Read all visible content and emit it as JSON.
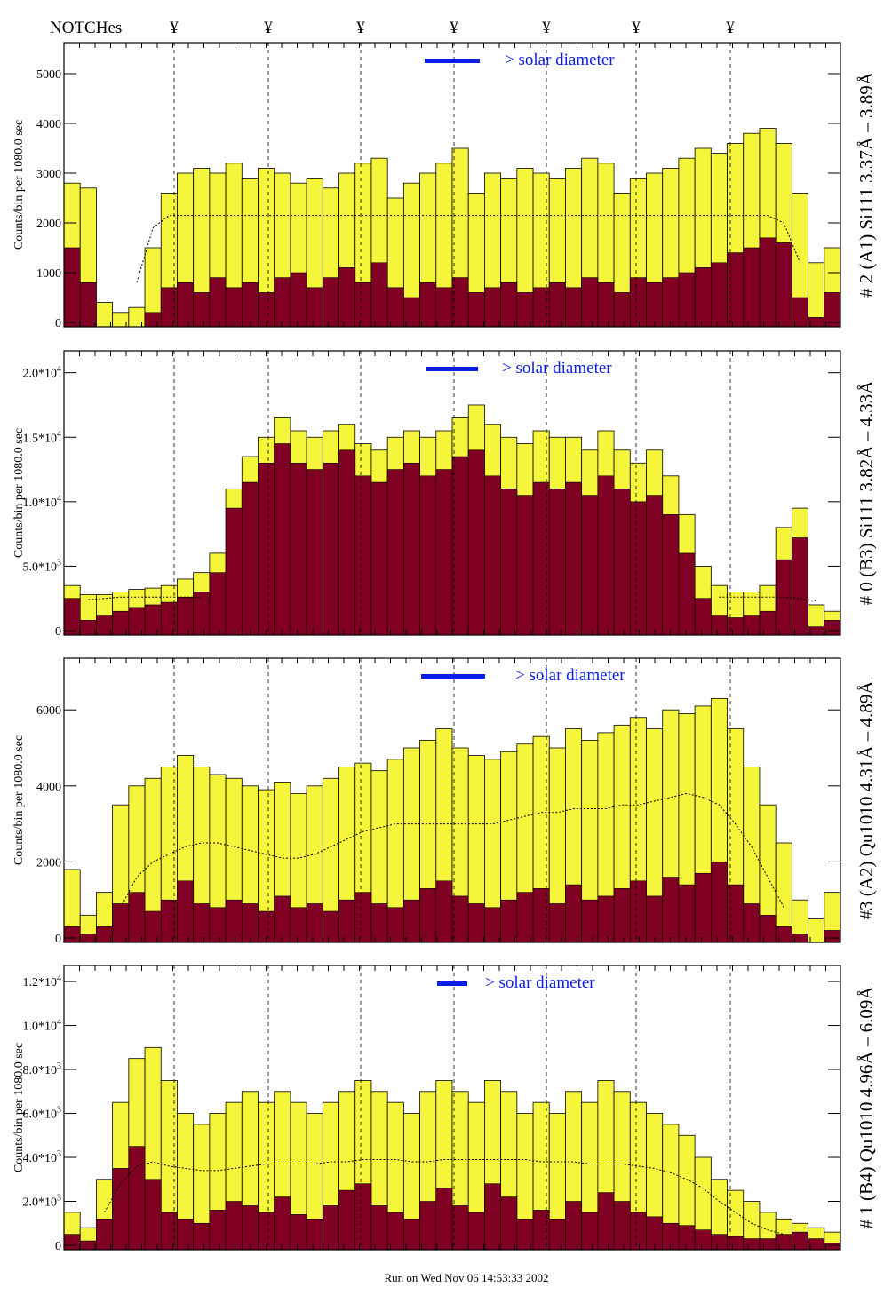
{
  "chart_data": {
    "type": "bar",
    "header_label": "NOTCHes",
    "notch_symbol": "¥",
    "notch_count": 7,
    "legend_text": "> solar diameter",
    "ylabel": "Counts/bin per   1080.0 sec",
    "footer": "Run on Wed Nov 06 14:53:33 2002",
    "colors": {
      "total": "#f5f53c",
      "component": "#7f0022",
      "legend": "#0a1ee6",
      "mean": "#000000"
    },
    "panels": [
      {
        "title": "# 2 (A1) Si111  3.37Å – 3.89Å",
        "ylim": [
          0,
          5625
        ],
        "ticks": [
          {
            "v": 0,
            "label": "0"
          },
          {
            "v": 1000,
            "label": "1000"
          },
          {
            "v": 2000,
            "label": "2000"
          },
          {
            "v": 3000,
            "label": "3000"
          },
          {
            "v": 4000,
            "label": "4000"
          },
          {
            "v": 5000,
            "label": "5000"
          }
        ],
        "total": [
          2800,
          2700,
          400,
          200,
          300,
          1500,
          2600,
          3000,
          3100,
          3000,
          3200,
          2900,
          3100,
          3000,
          2800,
          2900,
          2700,
          3000,
          3200,
          3300,
          2500,
          2800,
          3000,
          3200,
          3500,
          2600,
          3000,
          2900,
          3100,
          3000,
          2900,
          3100,
          3300,
          3200,
          2600,
          2900,
          3000,
          3100,
          3300,
          3500,
          3400,
          3600,
          3800,
          3900,
          3600,
          2600,
          1200,
          1500
        ],
        "component": [
          1500,
          800,
          0,
          0,
          0,
          200,
          700,
          800,
          600,
          900,
          700,
          800,
          600,
          900,
          1000,
          700,
          900,
          1100,
          800,
          1200,
          700,
          500,
          800,
          700,
          900,
          600,
          700,
          800,
          600,
          700,
          800,
          700,
          900,
          800,
          600,
          900,
          800,
          900,
          1000,
          1100,
          1200,
          1400,
          1500,
          1700,
          1600,
          500,
          100,
          600
        ],
        "mean": [
          null,
          null,
          null,
          null,
          800,
          1900,
          2150,
          2150,
          2150,
          2150,
          2150,
          2150,
          2150,
          2150,
          2150,
          2150,
          2150,
          2150,
          2150,
          2150,
          2150,
          2150,
          2150,
          2150,
          2150,
          2150,
          2150,
          2150,
          2150,
          2150,
          2150,
          2150,
          2150,
          2150,
          2150,
          2150,
          2150,
          2150,
          2150,
          2150,
          2150,
          2150,
          2150,
          2150,
          2000,
          1200,
          null,
          null
        ]
      },
      {
        "title": "# 0 (B3) Si111  3.82Å – 4.33Å",
        "ylim": [
          0,
          21700
        ],
        "ticks": [
          {
            "v": 0,
            "label": "0"
          },
          {
            "v": 5000,
            "label": "5.0*10",
            "exp": "3"
          },
          {
            "v": 10000,
            "label": "1.0*10",
            "exp": "4"
          },
          {
            "v": 15000,
            "label": "1.5*10",
            "exp": "4"
          },
          {
            "v": 20000,
            "label": "2.0*10",
            "exp": "4"
          }
        ],
        "total": [
          3500,
          2800,
          2800,
          3000,
          3200,
          3300,
          3500,
          4000,
          4500,
          6000,
          11000,
          13500,
          15000,
          16500,
          15500,
          15000,
          15500,
          16000,
          14500,
          14000,
          15000,
          15500,
          15000,
          15500,
          16500,
          17500,
          16000,
          15000,
          14500,
          15500,
          15000,
          15000,
          14000,
          15500,
          14000,
          13000,
          14000,
          12000,
          9000,
          5000,
          3500,
          3000,
          3000,
          3500,
          8000,
          9500,
          2000,
          1500
        ],
        "component": [
          2500,
          800,
          1200,
          1500,
          1800,
          2000,
          2200,
          2600,
          3000,
          4500,
          9500,
          11500,
          13000,
          14500,
          13000,
          12500,
          13000,
          14000,
          12000,
          11500,
          12500,
          13000,
          12000,
          12500,
          13500,
          14000,
          12000,
          11000,
          10500,
          11500,
          11000,
          11500,
          10500,
          12000,
          11000,
          10000,
          10500,
          9000,
          6000,
          2500,
          1200,
          1000,
          1200,
          1500,
          5500,
          7200,
          300,
          800
        ],
        "mean": [
          null,
          2400,
          2500,
          2600,
          2600,
          2600,
          2600,
          2600,
          2600,
          null,
          null,
          null,
          null,
          null,
          null,
          null,
          null,
          null,
          null,
          null,
          null,
          null,
          null,
          null,
          null,
          null,
          null,
          null,
          null,
          null,
          null,
          null,
          null,
          null,
          null,
          null,
          null,
          null,
          null,
          null,
          2600,
          2600,
          2600,
          2600,
          2600,
          2500,
          2300,
          null
        ]
      },
      {
        "title": "#3 (A2) Qu1010  4.31Å – 4.89Å",
        "ylim": [
          0,
          7360
        ],
        "ticks": [
          {
            "v": 0,
            "label": "0"
          },
          {
            "v": 2000,
            "label": "2000"
          },
          {
            "v": 4000,
            "label": "4000"
          },
          {
            "v": 6000,
            "label": "6000"
          }
        ],
        "total": [
          1800,
          600,
          1200,
          3500,
          4000,
          4200,
          4500,
          4800,
          4500,
          4300,
          4200,
          4000,
          3900,
          4100,
          3800,
          4000,
          4200,
          4500,
          4600,
          4400,
          4700,
          5000,
          5200,
          5500,
          5000,
          4800,
          4700,
          4900,
          5100,
          5300,
          5000,
          5500,
          5200,
          5400,
          5600,
          5800,
          5500,
          6000,
          5900,
          6100,
          6300,
          5500,
          4500,
          3500,
          2500,
          1000,
          500,
          1200
        ],
        "component": [
          300,
          100,
          300,
          900,
          1200,
          700,
          1000,
          1500,
          900,
          800,
          1000,
          900,
          700,
          1100,
          800,
          900,
          700,
          1000,
          1200,
          900,
          800,
          1000,
          1300,
          1500,
          1100,
          900,
          800,
          1000,
          1200,
          1300,
          900,
          1400,
          1000,
          1100,
          1300,
          1500,
          1100,
          1600,
          1400,
          1700,
          2000,
          1400,
          900,
          600,
          300,
          100,
          0,
          200
        ],
        "mean": [
          null,
          null,
          null,
          800,
          1600,
          2000,
          2200,
          2400,
          2500,
          2500,
          2400,
          2300,
          2200,
          2100,
          2100,
          2200,
          2400,
          2600,
          2800,
          2900,
          3000,
          3000,
          3000,
          3000,
          3000,
          3000,
          3000,
          3100,
          3200,
          3300,
          3300,
          3400,
          3400,
          3400,
          3500,
          3500,
          3600,
          3700,
          3800,
          3700,
          3500,
          3000,
          2400,
          1600,
          800,
          null,
          null,
          null
        ]
      },
      {
        "title": "# 1 (B4) Qu1010 4.96Å – 6.09Å",
        "ylim": [
          0,
          12730
        ],
        "ticks": [
          {
            "v": 0,
            "label": "0"
          },
          {
            "v": 2000,
            "label": "2.0*10",
            "exp": "3"
          },
          {
            "v": 4000,
            "label": "4.0*10",
            "exp": "3"
          },
          {
            "v": 6000,
            "label": "6.0*10",
            "exp": "3"
          },
          {
            "v": 8000,
            "label": "8.0*10",
            "exp": "3"
          },
          {
            "v": 10000,
            "label": "1.0*10",
            "exp": "4"
          },
          {
            "v": 12000,
            "label": "1.2*10",
            "exp": "4"
          }
        ],
        "total": [
          1500,
          800,
          3000,
          6500,
          8500,
          9000,
          7500,
          6000,
          5500,
          6000,
          6500,
          7000,
          6500,
          7000,
          6500,
          6000,
          6500,
          7000,
          7500,
          7000,
          6500,
          6000,
          7000,
          7500,
          7000,
          6500,
          7500,
          7000,
          6000,
          6500,
          6000,
          7000,
          6500,
          7500,
          7000,
          6500,
          6000,
          5500,
          5000,
          4000,
          3000,
          2500,
          2000,
          1500,
          1200,
          1000,
          800,
          600
        ],
        "component": [
          500,
          200,
          1200,
          3500,
          4500,
          3000,
          1500,
          1200,
          1000,
          1600,
          2000,
          1800,
          1500,
          2200,
          1400,
          1200,
          1800,
          2500,
          2800,
          1800,
          1500,
          1200,
          2000,
          2600,
          1800,
          1500,
          2800,
          2200,
          1200,
          1600,
          1200,
          2000,
          1500,
          2400,
          2000,
          1500,
          1300,
          1000,
          900,
          700,
          500,
          400,
          300,
          300,
          500,
          600,
          300,
          100
        ],
        "mean": [
          null,
          null,
          1500,
          2800,
          3600,
          3800,
          3600,
          3500,
          3400,
          3400,
          3500,
          3600,
          3700,
          3700,
          3700,
          3700,
          3800,
          3800,
          3900,
          3900,
          3900,
          3800,
          3800,
          3900,
          3900,
          3900,
          3900,
          3900,
          3900,
          3800,
          3800,
          3800,
          3700,
          3700,
          3700,
          3600,
          3500,
          3300,
          3000,
          2600,
          2000,
          1500,
          1000,
          700,
          500,
          null,
          null,
          null
        ]
      }
    ]
  }
}
